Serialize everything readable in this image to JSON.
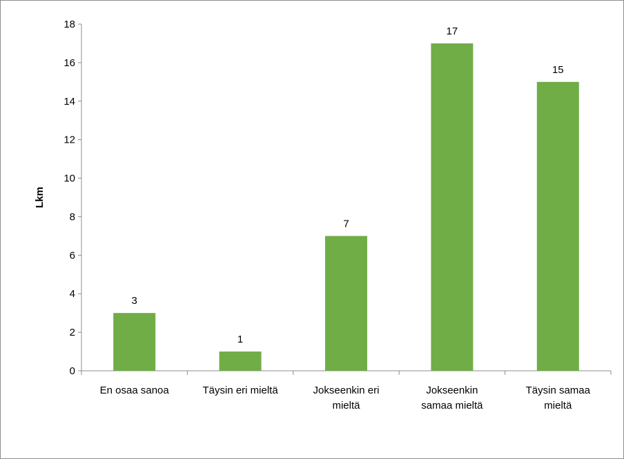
{
  "chart_data": {
    "type": "bar",
    "categories": [
      [
        "En osaa sanoa"
      ],
      [
        "Täysin eri mieltä"
      ],
      [
        "Jokseenkin eri",
        "mieltä"
      ],
      [
        "Jokseenkin",
        "samaa mieltä"
      ],
      [
        "Täysin samaa",
        "mieltä"
      ]
    ],
    "values": [
      3,
      1,
      7,
      17,
      15
    ],
    "data_labels": [
      "3",
      "1",
      "7",
      "17",
      "15"
    ],
    "ylabel": "Lkm",
    "ylim": [
      0,
      18
    ],
    "yticks": [
      "0",
      "2",
      "4",
      "6",
      "8",
      "10",
      "12",
      "14",
      "16",
      "18"
    ],
    "grid": false,
    "legend": "none",
    "bar_color": "#70ad47"
  }
}
